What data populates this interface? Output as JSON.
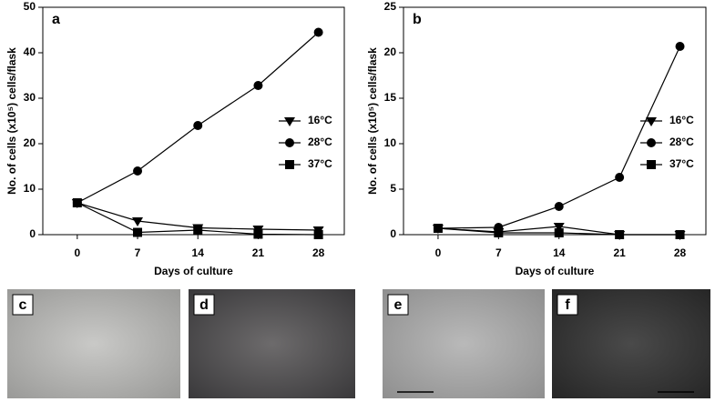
{
  "chart_data": [
    {
      "type": "line",
      "title": "a",
      "xlabel": "Days of culture",
      "ylabel": "No. of cells (x10⁵) cells/flask",
      "x": [
        0,
        7,
        14,
        21,
        28
      ],
      "xlim": [
        -4,
        31
      ],
      "xticks": [
        0,
        7,
        14,
        21,
        28
      ],
      "ylim": [
        0,
        50
      ],
      "yticks": [
        0,
        10,
        20,
        30,
        40,
        50
      ],
      "legend": "center right",
      "series": [
        {
          "name": "16°C",
          "color": "#000000",
          "marker": "triangle-down",
          "values": [
            7,
            3,
            1.5,
            1.2,
            1
          ]
        },
        {
          "name": "28°C",
          "color": "#000000",
          "marker": "circle",
          "values": [
            7,
            14,
            24,
            32.8,
            44.5
          ]
        },
        {
          "name": "37°C",
          "color": "#000000",
          "marker": "square",
          "values": [
            7,
            0.5,
            1,
            0.1,
            0
          ]
        }
      ]
    },
    {
      "type": "line",
      "title": "b",
      "xlabel": "Days of culture",
      "ylabel": "No. of cells (x10⁵) cells/flask",
      "x": [
        0,
        7,
        14,
        21,
        28
      ],
      "xlim": [
        -4,
        31
      ],
      "xticks": [
        0,
        7,
        14,
        21,
        28
      ],
      "ylim": [
        0,
        25
      ],
      "yticks": [
        0,
        5,
        10,
        15,
        20,
        25
      ],
      "legend": "center right",
      "series": [
        {
          "name": "16°C",
          "color": "#000000",
          "marker": "triangle-down",
          "values": [
            0.7,
            0.3,
            0.9,
            0,
            0
          ]
        },
        {
          "name": "28°C",
          "color": "#000000",
          "marker": "circle",
          "values": [
            0.7,
            0.8,
            3.1,
            6.3,
            20.7
          ]
        },
        {
          "name": "37°C",
          "color": "#000000",
          "marker": "square",
          "values": [
            0.7,
            0.2,
            0.2,
            0,
            0
          ]
        }
      ]
    }
  ],
  "panels": [
    {
      "label": "c"
    },
    {
      "label": "d"
    },
    {
      "label": "e"
    },
    {
      "label": "f"
    }
  ]
}
